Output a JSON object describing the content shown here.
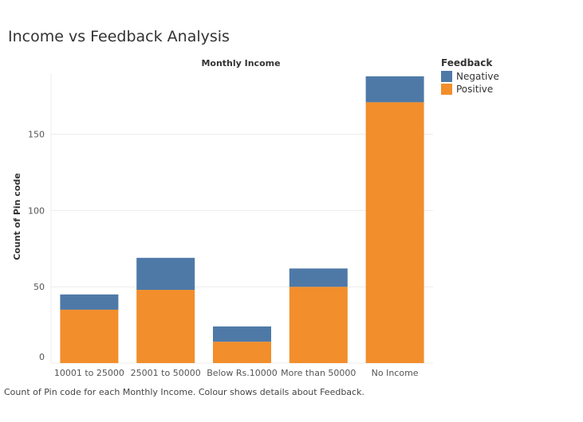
{
  "page": {
    "title": "Income vs Feedback Analysis",
    "caption": "Count of Pin code for each Monthly Income.  Colour shows details about Feedback."
  },
  "colors": {
    "negative": "#4e79a7",
    "positive": "#f28e2b",
    "grid": "#ececec",
    "axis_text": "#555555"
  },
  "chart_data": {
    "type": "bar",
    "stacked": true,
    "title": "",
    "column_header": "Monthly Income",
    "xlabel": "",
    "ylabel": "Count of Pin code",
    "categories": [
      "10001 to 25000",
      "25001 to 50000",
      "Below Rs.10000",
      "More than 50000",
      "No Income"
    ],
    "series": [
      {
        "name": "Positive",
        "values": [
          35,
          48,
          14,
          50,
          171
        ]
      },
      {
        "name": "Negative",
        "values": [
          10,
          21,
          10,
          12,
          17
        ]
      }
    ],
    "ylim": [
      0,
      190
    ],
    "yticks": [
      0,
      50,
      100,
      150
    ],
    "grid": true,
    "legend": {
      "title": "Feedback",
      "position": "right",
      "entries": [
        "Negative",
        "Positive"
      ]
    }
  }
}
